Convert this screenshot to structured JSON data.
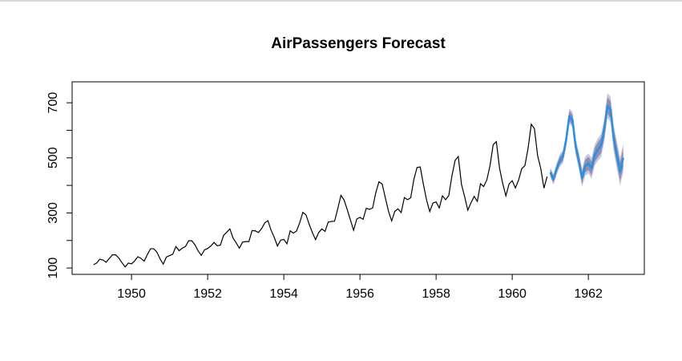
{
  "chart_data": {
    "type": "line",
    "title": "AirPassengers Forecast",
    "xlabel": "",
    "ylabel": "",
    "xlim": [
      1948.44,
      1963.47
    ],
    "ylim": [
      77,
      776
    ],
    "x_ticks": [
      1950,
      1952,
      1954,
      1956,
      1958,
      1960,
      1962
    ],
    "y_ticks": [
      100,
      200,
      300,
      400,
      500,
      600,
      700
    ],
    "y_tick_labels": [
      "100",
      "",
      "300",
      "",
      "500",
      "",
      "700"
    ],
    "grid": false,
    "colors": {
      "history": "#000000",
      "forecast": "#2f8fdb",
      "band80": "#8e8eb8",
      "band95": "#c8c8dc"
    },
    "history": {
      "start": 1949,
      "frequency": 12,
      "values": [
        112,
        118,
        132,
        129,
        121,
        135,
        148,
        148,
        136,
        119,
        104,
        118,
        115,
        126,
        141,
        135,
        125,
        149,
        170,
        170,
        158,
        133,
        114,
        140,
        145,
        150,
        178,
        163,
        172,
        178,
        199,
        199,
        184,
        162,
        146,
        166,
        171,
        180,
        193,
        181,
        183,
        218,
        230,
        242,
        209,
        191,
        172,
        194,
        196,
        196,
        236,
        235,
        229,
        243,
        264,
        272,
        237,
        211,
        180,
        201,
        204,
        188,
        235,
        227,
        234,
        264,
        302,
        293,
        259,
        229,
        203,
        229,
        242,
        233,
        267,
        269,
        270,
        315,
        364,
        347,
        312,
        274,
        237,
        278,
        284,
        277,
        317,
        313,
        318,
        374,
        413,
        405,
        355,
        306,
        271,
        306,
        315,
        301,
        356,
        348,
        355,
        422,
        465,
        467,
        404,
        347,
        305,
        336,
        340,
        318,
        362,
        348,
        363,
        435,
        491,
        505,
        404,
        359,
        310,
        337,
        360,
        342,
        406,
        396,
        420,
        472,
        548,
        559,
        463,
        407,
        362,
        405,
        417,
        391,
        419,
        461,
        472,
        535,
        622,
        606,
        508,
        461,
        390,
        432
      ]
    },
    "forecast": {
      "start": 1961,
      "frequency": 12,
      "mean": [
        447,
        422,
        460,
        490,
        505,
        565,
        652,
        638,
        540,
        490,
        428,
        470,
        480,
        462,
        510,
        530,
        545,
        600,
        690,
        675,
        570,
        510,
        450,
        500
      ],
      "lo80": [
        435,
        409,
        446,
        475,
        489,
        548,
        634,
        619,
        520,
        469,
        406,
        447,
        456,
        437,
        484,
        503,
        517,
        571,
        660,
        644,
        538,
        477,
        416,
        465
      ],
      "hi80": [
        459,
        435,
        474,
        505,
        521,
        582,
        670,
        657,
        560,
        511,
        450,
        493,
        504,
        487,
        536,
        557,
        573,
        629,
        720,
        706,
        602,
        543,
        484,
        535
      ],
      "lo95": [
        429,
        402,
        439,
        467,
        481,
        539,
        625,
        609,
        510,
        458,
        395,
        435,
        444,
        424,
        471,
        489,
        503,
        556,
        645,
        628,
        522,
        460,
        399,
        447
      ],
      "hi95": [
        465,
        442,
        481,
        513,
        529,
        591,
        679,
        667,
        570,
        522,
        461,
        505,
        516,
        500,
        549,
        571,
        587,
        644,
        735,
        722,
        618,
        560,
        501,
        553
      ]
    }
  }
}
